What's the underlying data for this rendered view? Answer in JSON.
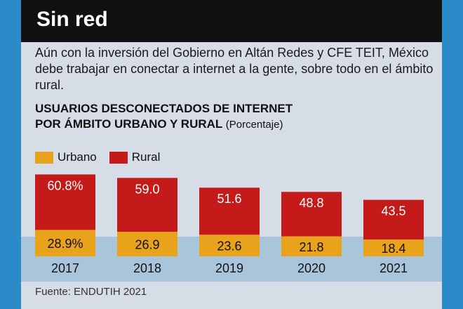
{
  "header": {
    "title": "Sin red"
  },
  "subtitle": "Aún con la inversión del Gobierno en Altán Redes y CFE TEIT, México debe trabajar en conectar a internet a la gente, sobre todo en el ámbito rural.",
  "chart_title": {
    "line1": "USUARIOS DESCONECTADOS DE INTERNET",
    "line2": "POR ÁMBITO URBANO Y RURAL",
    "unit": "(Porcentaje)"
  },
  "source": "Fuente: ENDUTIH 2021",
  "colors": {
    "urbano": "#e8a21c",
    "rural": "#c41a1a",
    "band": "#a9c5dc",
    "background": "#d6dde6"
  },
  "chart_data": {
    "type": "bar",
    "stacked": true,
    "categories": [
      "2017",
      "2018",
      "2019",
      "2020",
      "2021"
    ],
    "series": [
      {
        "name": "Urbano",
        "values": [
          28.9,
          26.9,
          23.6,
          21.8,
          18.4
        ],
        "labels": [
          "28.9%",
          "26.9",
          "23.6",
          "21.8",
          "18.4"
        ]
      },
      {
        "name": "Rural",
        "values": [
          60.8,
          59.0,
          51.6,
          48.8,
          43.5
        ],
        "labels": [
          "60.8%",
          "59.0",
          "51.6",
          "48.8",
          "43.5"
        ]
      }
    ],
    "legend": "top-left",
    "grid": false
  }
}
